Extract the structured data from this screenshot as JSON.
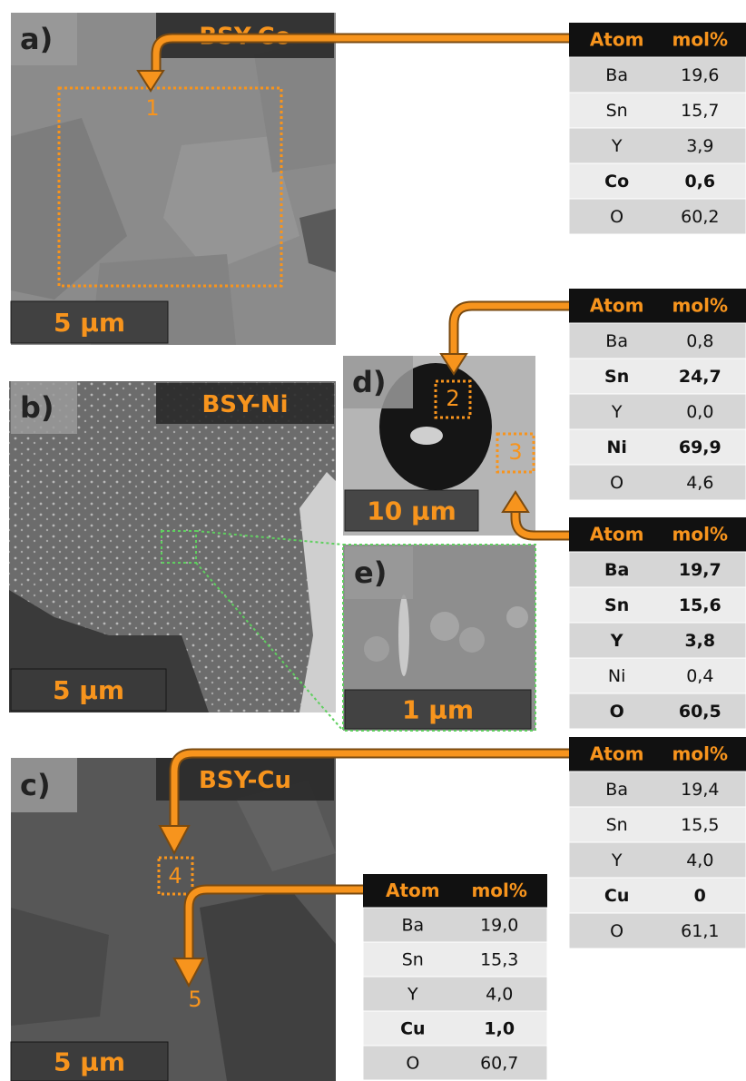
{
  "panels": [
    {
      "label": "a)",
      "sample": "BSY-Co",
      "scale_bar": "5 µm",
      "markers": [
        "1"
      ]
    },
    {
      "label": "b)",
      "sample": "BSY-Ni",
      "scale_bar": "5 µm"
    },
    {
      "label": "c)",
      "sample": "BSY-Cu",
      "scale_bar": "5 µm",
      "markers": [
        "4",
        "5"
      ]
    },
    {
      "label": "d)",
      "scale_bar": "10 µm",
      "markers": [
        "2",
        "3"
      ]
    },
    {
      "label": "e)",
      "scale_bar": "1 µm"
    }
  ],
  "tables": [
    {
      "header": [
        "Atom",
        "mol%"
      ],
      "rows": [
        [
          "Ba",
          "19,6"
        ],
        [
          "Sn",
          "15,7"
        ],
        [
          "Y",
          "3,9"
        ],
        [
          "Co",
          "0,6"
        ],
        [
          "O",
          "60,2"
        ]
      ],
      "bold_rows": [
        3
      ]
    },
    {
      "header": [
        "Atom",
        "mol%"
      ],
      "rows": [
        [
          "Ba",
          "0,8"
        ],
        [
          "Sn",
          "24,7"
        ],
        [
          "Y",
          "0,0"
        ],
        [
          "Ni",
          "69,9"
        ],
        [
          "O",
          "4,6"
        ]
      ],
      "bold_rows": [
        1,
        3
      ]
    },
    {
      "header": [
        "Atom",
        "mol%"
      ],
      "rows": [
        [
          "Ba",
          "19,7"
        ],
        [
          "Sn",
          "15,6"
        ],
        [
          "Y",
          "3,8"
        ],
        [
          "Ni",
          "0,4"
        ],
        [
          "O",
          "60,5"
        ]
      ],
      "bold_rows": [
        0,
        1,
        2,
        4
      ]
    },
    {
      "header": [
        "Atom",
        "mol%"
      ],
      "rows": [
        [
          "Ba",
          "19,4"
        ],
        [
          "Sn",
          "15,5"
        ],
        [
          "Y",
          "4,0"
        ],
        [
          "Cu",
          "0"
        ],
        [
          "O",
          "61,1"
        ]
      ],
      "bold_rows": [
        3
      ]
    },
    {
      "header": [
        "Atom",
        "mol%"
      ],
      "rows": [
        [
          "Ba",
          "19,0"
        ],
        [
          "Sn",
          "15,3"
        ],
        [
          "Y",
          "4,0"
        ],
        [
          "Cu",
          "1,0"
        ],
        [
          "O",
          "60,7"
        ]
      ],
      "bold_rows": [
        3
      ]
    }
  ]
}
